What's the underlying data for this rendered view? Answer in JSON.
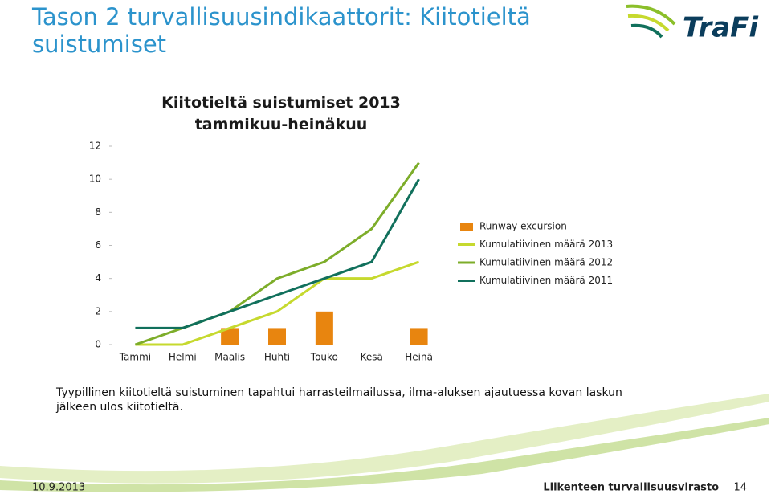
{
  "slide": {
    "title": "Tason 2 turvallisuusindikaattorit: Kiitotieltä suistumiset",
    "logo": "TraFi",
    "text": "Tyypillinen kiitotieltä suistuminen tapahtui harrasteilmailussa, ilma-aluksen ajautuessa kovan laskun jälkeen ulos kiitotieltä.",
    "footer": {
      "date": "10.9.2013",
      "org": "Liikenteen turvallisuusvirasto",
      "page": "14"
    }
  },
  "chart_data": {
    "type": "combo",
    "title": "Kiitotieltä suistumiset 2013 tammikuu-heinäkuu",
    "categories": [
      "Tammi",
      "Helmi",
      "Maalis",
      "Huhti",
      "Touko",
      "Kesä",
      "Heinä"
    ],
    "series": [
      {
        "name": "Runway excursion",
        "type": "bar",
        "color": "#e8850f",
        "values": [
          0,
          0,
          1,
          1,
          2,
          0,
          1
        ]
      },
      {
        "name": "Kumulatiivinen määrä 2013",
        "type": "line",
        "color": "#c6d92e",
        "values": [
          0,
          0,
          1,
          2,
          4,
          4,
          5
        ]
      },
      {
        "name": "Kumulatiivinen määrä 2012",
        "type": "line",
        "color": "#7dad2a",
        "values": [
          0,
          1,
          2,
          4,
          5,
          7,
          11
        ]
      },
      {
        "name": "Kumulatiivinen määrä 2011",
        "type": "line",
        "color": "#11705c",
        "values": [
          1,
          1,
          2,
          3,
          4,
          5,
          10
        ]
      }
    ],
    "ylim": [
      0,
      12
    ],
    "yticks": [
      0,
      2,
      4,
      6,
      8,
      10,
      12
    ],
    "legend": "right"
  }
}
